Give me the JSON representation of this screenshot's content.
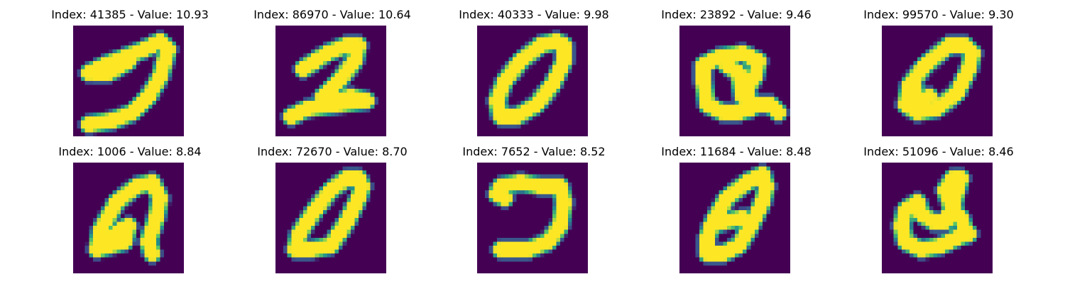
{
  "colormap": {
    "low": "#440154",
    "mid": "#21918c",
    "high": "#fde725"
  },
  "panels": [
    {
      "title": "Index: 41385 - Value: 10.93",
      "shape": "digit-hook-stroke"
    },
    {
      "title": "Index: 86970 - Value: 10.64",
      "shape": "digit-two-stroke"
    },
    {
      "title": "Index: 40333 - Value: 9.98",
      "shape": "digit-zero-oval"
    },
    {
      "title": "Index: 23892 - Value: 9.46",
      "shape": "digit-loop-with-tail"
    },
    {
      "title": "Index: 99570 - Value: 9.30",
      "shape": "digit-zero-thick"
    },
    {
      "title": "Index: 1006 - Value: 8.84",
      "shape": "digit-open-loop"
    },
    {
      "title": "Index: 72670 - Value: 8.70",
      "shape": "digit-zero-slanted"
    },
    {
      "title": "Index: 7652 - Value: 8.52",
      "shape": "digit-reversed-c"
    },
    {
      "title": "Index: 11684 - Value: 8.48",
      "shape": "digit-zero-with-crossbar"
    },
    {
      "title": "Index: 51096 - Value: 8.46",
      "shape": "digit-curl-with-loop"
    }
  ]
}
